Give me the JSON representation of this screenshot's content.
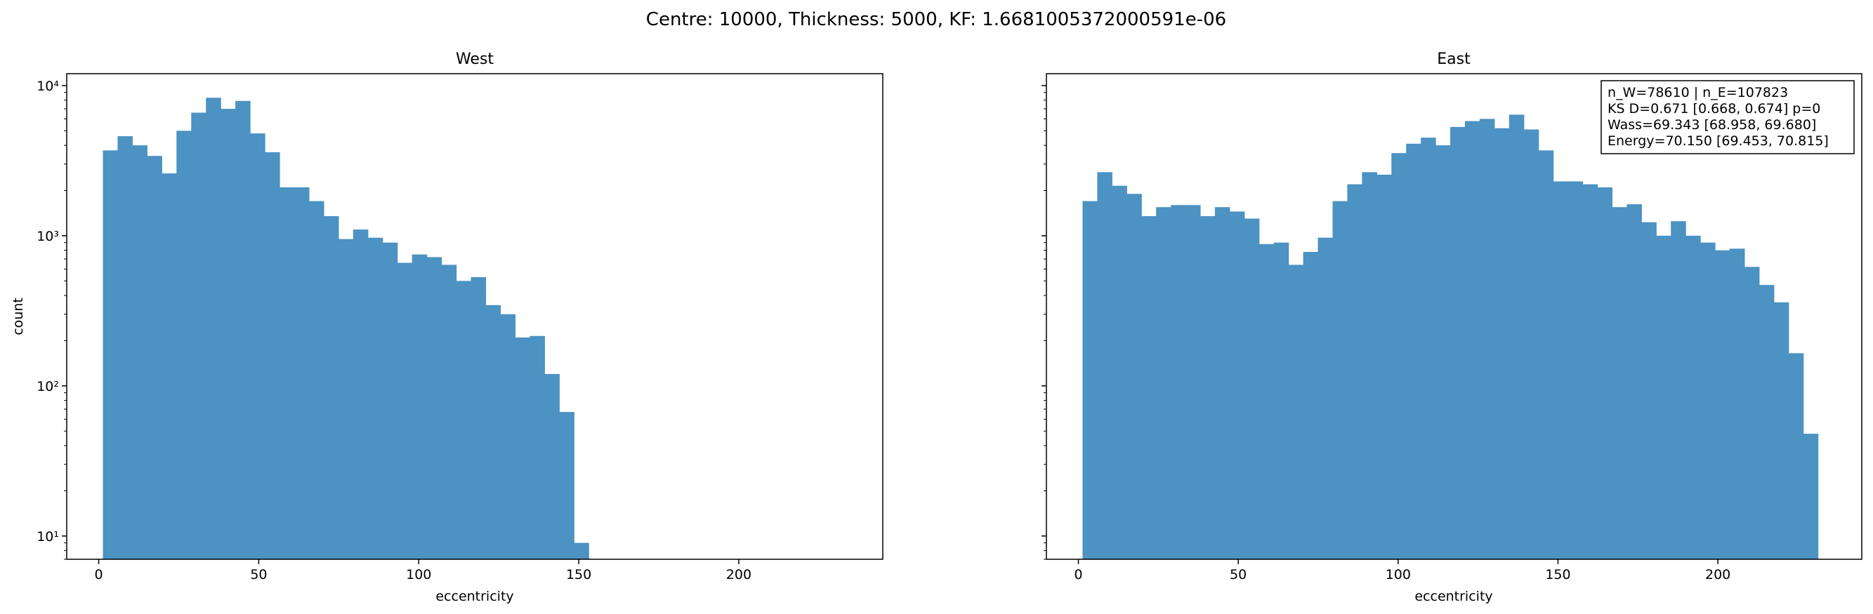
{
  "figure": {
    "suptitle": "Centre: 10000, Thickness: 5000, KF: 1.6681005372000591e-06"
  },
  "chart_data": [
    {
      "type": "bar",
      "subtype": "histogram",
      "title": "West",
      "xlabel": "eccentricity",
      "ylabel": "count",
      "yscale": "log",
      "xlim": [
        -10,
        245
      ],
      "ylim": [
        7,
        12000
      ],
      "xticks": [
        "0",
        "50",
        "100",
        "150",
        "200"
      ],
      "yticks": [
        "10¹",
        "10²",
        "10³",
        "10⁴"
      ],
      "bin_start": 1.3,
      "bin_width": 4.6,
      "values": [
        3700,
        4600,
        4000,
        3400,
        2600,
        5000,
        6600,
        8300,
        7000,
        7900,
        4800,
        3600,
        2100,
        2100,
        1700,
        1350,
        950,
        1100,
        970,
        900,
        660,
        750,
        720,
        640,
        500,
        530,
        345,
        300,
        210,
        215,
        120,
        67,
        9
      ],
      "color": "#4c92c3"
    },
    {
      "type": "bar",
      "subtype": "histogram",
      "title": "East",
      "xlabel": "eccentricity",
      "ylabel": "",
      "yscale": "log",
      "xlim": [
        -10,
        245
      ],
      "ylim": [
        7,
        12000
      ],
      "xticks": [
        "0",
        "50",
        "100",
        "150",
        "200"
      ],
      "bin_start": 1.3,
      "bin_width": 4.6,
      "values": [
        1700,
        2650,
        2150,
        1900,
        1350,
        1550,
        1600,
        1600,
        1350,
        1550,
        1450,
        1300,
        880,
        900,
        640,
        780,
        970,
        1700,
        2200,
        2650,
        2550,
        3550,
        4100,
        4500,
        4000,
        5300,
        5800,
        6000,
        5200,
        6400,
        5100,
        3700,
        2300,
        2300,
        2200,
        2100,
        1550,
        1620,
        1230,
        1000,
        1250,
        1000,
        900,
        800,
        820,
        620,
        470,
        360,
        165,
        48
      ],
      "color": "#4c92c3",
      "annotation": [
        "n_W=78610 | n_E=107823",
        "KS D=0.671 [0.668, 0.674]  p=0",
        "Wass=69.343 [68.958, 69.680]",
        "Energy=70.150 [69.453, 70.815]"
      ]
    }
  ]
}
